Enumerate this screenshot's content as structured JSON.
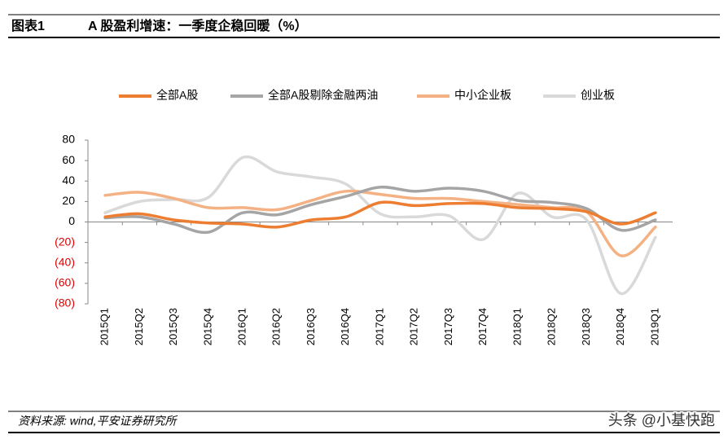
{
  "header": {
    "label": "图表1",
    "title": "A 股盈利增速：一季度企稳回暖（%）"
  },
  "chart_data": {
    "type": "line",
    "categories": [
      "2015Q1",
      "2015Q2",
      "2015Q3",
      "2015Q4",
      "2016Q1",
      "2016Q2",
      "2016Q3",
      "2016Q4",
      "2017Q1",
      "2017Q2",
      "2017Q3",
      "2017Q4",
      "2018Q1",
      "2018Q2",
      "2018Q3",
      "2018Q4",
      "2019Q1"
    ],
    "series": [
      {
        "name": "全部A股",
        "color": "#ed7d31",
        "values": [
          5,
          8,
          2,
          -1,
          -2,
          -5,
          2,
          5,
          19,
          16,
          18,
          18,
          14,
          13,
          10,
          -2,
          9
        ]
      },
      {
        "name": "全部A股剔除金融两油",
        "color": "#a5a5a5",
        "values": [
          4,
          5,
          -2,
          -10,
          9,
          7,
          17,
          25,
          34,
          30,
          33,
          30,
          21,
          19,
          13,
          -8,
          2
        ]
      },
      {
        "name": "中小企业板",
        "color": "#f4b183",
        "values": [
          26,
          29,
          23,
          14,
          14,
          12,
          21,
          30,
          27,
          23,
          23,
          20,
          17,
          14,
          10,
          -33,
          -5
        ]
      },
      {
        "name": "创业板",
        "color": "#d9d9d9",
        "values": [
          9,
          20,
          22,
          24,
          63,
          49,
          44,
          37,
          8,
          5,
          6,
          -17,
          28,
          5,
          2,
          -70,
          -15
        ]
      }
    ],
    "ylim": [
      -80,
      80
    ],
    "yticks": [
      {
        "value": -80,
        "label": "(80)"
      },
      {
        "value": -60,
        "label": "(60)"
      },
      {
        "value": -40,
        "label": "(40)"
      },
      {
        "value": -20,
        "label": "(20)"
      },
      0,
      20,
      40,
      60,
      80
    ],
    "negative_tick_color": "#e00000",
    "legend": "top"
  },
  "footer": {
    "source": "资料来源: wind,平安证券研究所",
    "watermark": "头条 @小基快跑"
  }
}
